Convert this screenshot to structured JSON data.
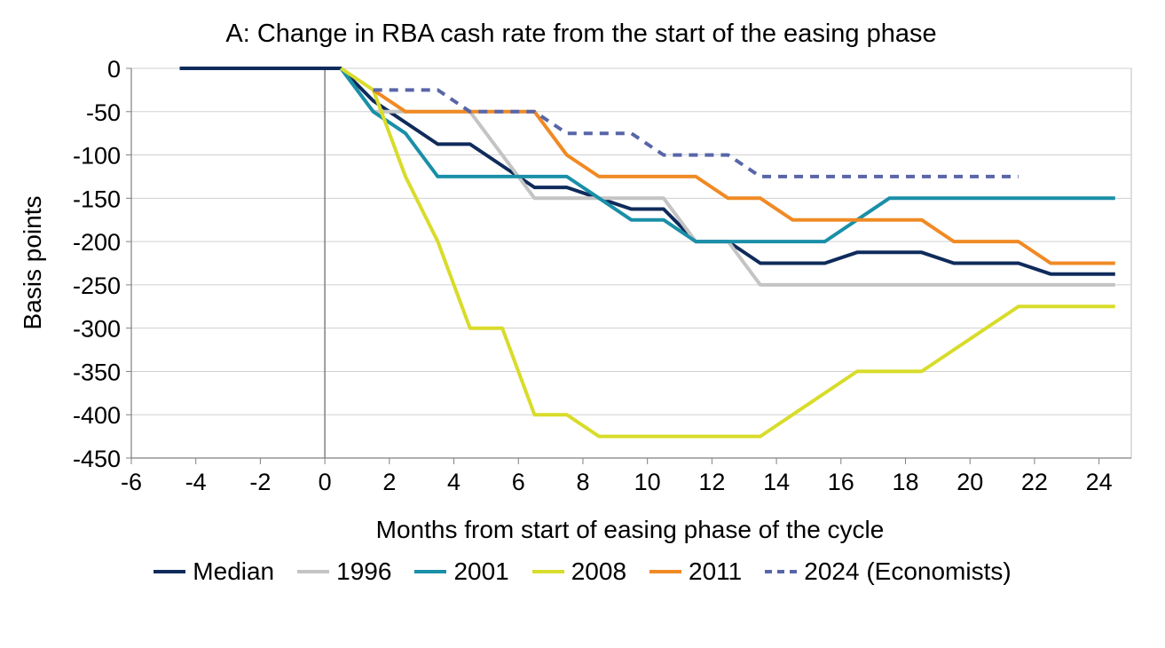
{
  "chart_data": {
    "type": "line",
    "title": "A: Change in RBA cash rate from the start of the easing phase",
    "xlabel": "Months from start of easing phase of the cycle",
    "ylabel": "Basis points",
    "xlim": [
      -6,
      25
    ],
    "ylim": [
      -450,
      0
    ],
    "xticks": [
      -6,
      -4,
      -2,
      0,
      2,
      4,
      6,
      8,
      10,
      12,
      14,
      16,
      18,
      20,
      22,
      24
    ],
    "yticks": [
      0,
      -50,
      -100,
      -150,
      -200,
      -250,
      -300,
      -350,
      -400,
      -450
    ],
    "grid": "horizontal",
    "reference_line_x": 0,
    "legend_position": "bottom",
    "series": [
      {
        "name": "Median",
        "color": "#0f2b5b",
        "style": "solid",
        "points": [
          [
            -4.5,
            0
          ],
          [
            0.5,
            0
          ],
          [
            1.5,
            -37.5
          ],
          [
            2.5,
            -62.5
          ],
          [
            3.5,
            -87.5
          ],
          [
            4.5,
            -87.5
          ],
          [
            6.5,
            -137.5
          ],
          [
            7.5,
            -137.5
          ],
          [
            8.5,
            -150
          ],
          [
            9.5,
            -162.5
          ],
          [
            10.5,
            -162.5
          ],
          [
            11.5,
            -200
          ],
          [
            12.5,
            -200
          ],
          [
            13.5,
            -225
          ],
          [
            15.5,
            -225
          ],
          [
            16.5,
            -212.5
          ],
          [
            18.5,
            -212.5
          ],
          [
            19.5,
            -225
          ],
          [
            21.5,
            -225
          ],
          [
            22.5,
            -237.5
          ],
          [
            24.5,
            -237.5
          ]
        ]
      },
      {
        "name": "1996",
        "color": "#c4c4c4",
        "style": "solid",
        "points": [
          [
            0.5,
            0
          ],
          [
            1.5,
            -50
          ],
          [
            4.5,
            -50
          ],
          [
            6.5,
            -150
          ],
          [
            10.5,
            -150
          ],
          [
            11.5,
            -200
          ],
          [
            12.5,
            -200
          ],
          [
            13.5,
            -250
          ],
          [
            24.5,
            -250
          ]
        ]
      },
      {
        "name": "2001",
        "color": "#1a8fa8",
        "style": "solid",
        "points": [
          [
            0.5,
            0
          ],
          [
            1.5,
            -50
          ],
          [
            2.5,
            -75
          ],
          [
            3.5,
            -125
          ],
          [
            7.5,
            -125
          ],
          [
            9.5,
            -175
          ],
          [
            10.5,
            -175
          ],
          [
            11.5,
            -200
          ],
          [
            15.5,
            -200
          ],
          [
            17.5,
            -150
          ],
          [
            24.5,
            -150
          ]
        ]
      },
      {
        "name": "2008",
        "color": "#d8dc2a",
        "style": "solid",
        "points": [
          [
            0.5,
            0
          ],
          [
            1.5,
            -25
          ],
          [
            2.5,
            -125
          ],
          [
            3.5,
            -200
          ],
          [
            4.5,
            -300
          ],
          [
            5.5,
            -300
          ],
          [
            6.5,
            -400
          ],
          [
            7.5,
            -400
          ],
          [
            8.5,
            -425
          ],
          [
            13.5,
            -425
          ],
          [
            16.5,
            -350
          ],
          [
            18.5,
            -350
          ],
          [
            21.5,
            -275
          ],
          [
            24.5,
            -275
          ]
        ]
      },
      {
        "name": "2011",
        "color": "#f08a24",
        "style": "solid",
        "points": [
          [
            1.5,
            -25
          ],
          [
            2.5,
            -50
          ],
          [
            6.5,
            -50
          ],
          [
            7.5,
            -100
          ],
          [
            8.5,
            -125
          ],
          [
            11.5,
            -125
          ],
          [
            12.5,
            -150
          ],
          [
            13.5,
            -150
          ],
          [
            14.5,
            -175
          ],
          [
            18.5,
            -175
          ],
          [
            19.5,
            -200
          ],
          [
            21.5,
            -200
          ],
          [
            22.5,
            -225
          ],
          [
            24.5,
            -225
          ]
        ]
      },
      {
        "name": "2024 (Economists)",
        "color": "#5866a8",
        "style": "dashed",
        "points": [
          [
            1.5,
            -25
          ],
          [
            3.5,
            -25
          ],
          [
            4.5,
            -50
          ],
          [
            6.5,
            -50
          ],
          [
            7.5,
            -75
          ],
          [
            9.5,
            -75
          ],
          [
            10.5,
            -100
          ],
          [
            12.5,
            -100
          ],
          [
            13.5,
            -125
          ],
          [
            21.5,
            -125
          ]
        ]
      }
    ]
  }
}
